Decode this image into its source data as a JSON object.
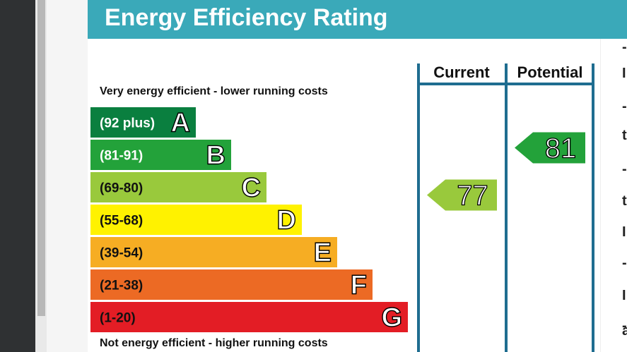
{
  "header": {
    "title": "Energy Efficiency Rating"
  },
  "captions": {
    "top": "Very energy efficient - lower running costs",
    "bottom": "Not energy efficient - higher running costs"
  },
  "chart_data": {
    "type": "bar",
    "title": "Energy Efficiency Rating",
    "bands": [
      {
        "letter": "A",
        "range": "(92 plus)",
        "color": "#0a7f3f",
        "text_color": "#ffffff"
      },
      {
        "letter": "B",
        "range": "(81-91)",
        "color": "#23a23a",
        "text_color": "#ffffff"
      },
      {
        "letter": "C",
        "range": "(69-80)",
        "color": "#99c93c",
        "text_color": "#111111"
      },
      {
        "letter": "D",
        "range": "(55-68)",
        "color": "#fff200",
        "text_color": "#111111"
      },
      {
        "letter": "E",
        "range": "(39-54)",
        "color": "#f6ad23",
        "text_color": "#111111"
      },
      {
        "letter": "F",
        "range": "(21-38)",
        "color": "#ec6a24",
        "text_color": "#111111"
      },
      {
        "letter": "G",
        "range": "(1-20)",
        "color": "#e31d25",
        "text_color": "#111111"
      }
    ],
    "columns": [
      "Current",
      "Potential"
    ],
    "current": {
      "value": 77,
      "band": "C",
      "color": "#99c93c"
    },
    "potential": {
      "value": 81,
      "band": "B",
      "color": "#23a23a"
    }
  },
  "colors": {
    "header": "#3aa9b9",
    "frame": "#1f6d90"
  },
  "right_fragments": [
    "-",
    "I",
    "-",
    "t",
    "-",
    "t",
    "I",
    "-",
    "I",
    "-",
    "a"
  ]
}
